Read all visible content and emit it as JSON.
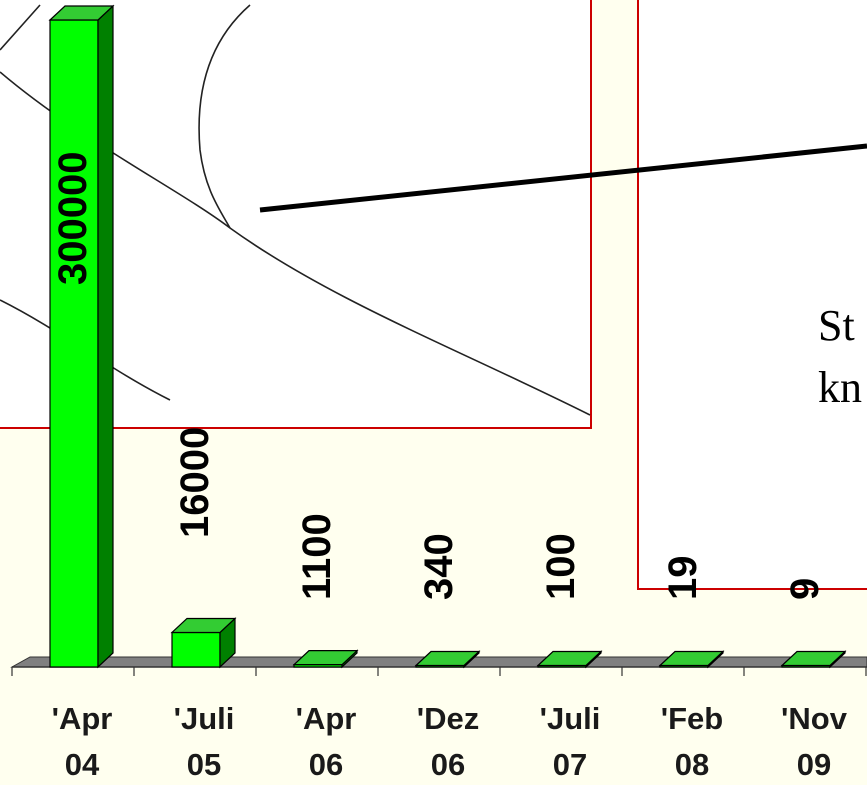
{
  "chart_data": {
    "type": "bar",
    "categories": [
      "'Apr 04",
      "'Juli 05",
      "'Apr 06",
      "'Dez 06",
      "'Juli 07",
      "'Feb 08",
      "'Nov 09"
    ],
    "category_lines": [
      [
        "'Apr",
        "04"
      ],
      [
        "'Juli",
        "05"
      ],
      [
        "'Apr",
        "06"
      ],
      [
        "'Dez",
        "06"
      ],
      [
        "'Juli",
        "07"
      ],
      [
        "'Feb",
        "08"
      ],
      [
        "'Nov",
        "09"
      ]
    ],
    "values": [
      300000,
      16000,
      1100,
      340,
      100,
      19,
      9
    ],
    "value_labels": [
      "300000",
      "16000",
      "1100",
      "340",
      "100",
      "19",
      "9"
    ],
    "title": "",
    "xlabel": "",
    "ylabel": "",
    "bar_style": "3d",
    "grid": false,
    "legend": "none"
  },
  "overlay": {
    "text_line_1": "St",
    "text_line_2": "kn"
  },
  "colors": {
    "background": "#FFFFEF",
    "bar_front": "#00FF00",
    "bar_side": "#008000",
    "bar_top": "#33CC33",
    "floor": "#808080",
    "panel_border": "#CC0000",
    "panel_fill": "#FFFFFF"
  }
}
